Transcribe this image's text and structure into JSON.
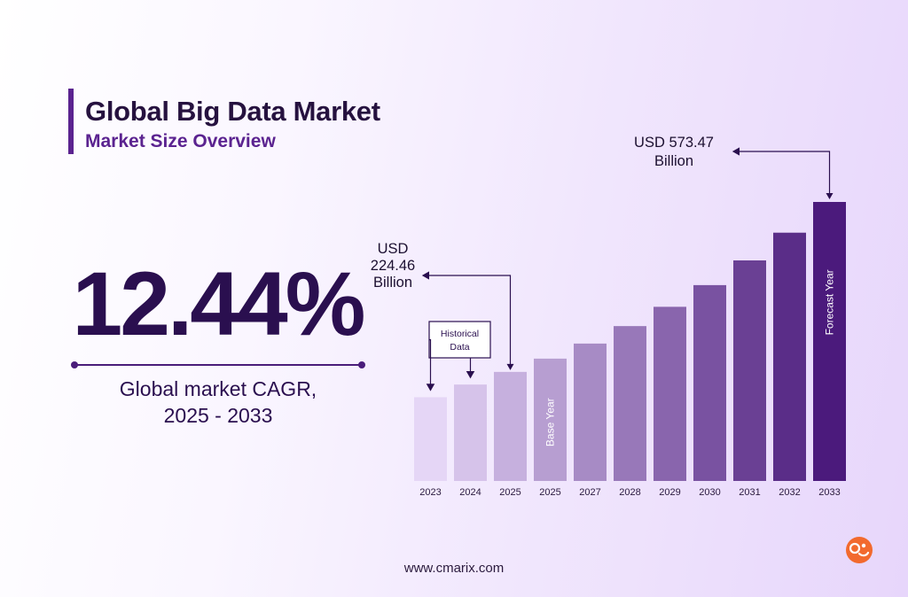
{
  "header": {
    "title": "Global Big Data Market",
    "subtitle": "Market Size Overview"
  },
  "cagr": {
    "value": "12.44%",
    "caption_line1": "Global market CAGR,",
    "caption_line2": "2025 - 2033"
  },
  "footer": {
    "website": "www.cmarix.com"
  },
  "logo": {
    "icon": "cmarix-logo-icon"
  },
  "colors": {
    "dark_text": "#2a0f4f",
    "accent": "#5b2390",
    "bar_light": "#e5d6f6",
    "bar_dark": "#4b1a7c",
    "logo_orange": "#f26a2e"
  },
  "chart_data": {
    "type": "bar",
    "categories": [
      "2023",
      "2024",
      "2025",
      "2025",
      "2027",
      "2028",
      "2029",
      "2030",
      "2031",
      "2032",
      "2033"
    ],
    "values": [
      139,
      160,
      181,
      203,
      228,
      257,
      289,
      325,
      366,
      412,
      463
    ],
    "value_note": "relative bar heights; only 2025 and 2033 are labeled",
    "bar_labels": {
      "3": "Base Year",
      "10": "Forecast Year"
    },
    "callouts": [
      {
        "target_index": 2,
        "line1": "USD",
        "line2": "224.46",
        "line3": "Billion"
      },
      {
        "target_index": 10,
        "line1": "USD 573.47",
        "line2": "Billion"
      }
    ],
    "historical_box": {
      "line1": "Historical",
      "line2": "Data",
      "targets": [
        0,
        1
      ]
    },
    "grid": false,
    "legend": "none"
  }
}
